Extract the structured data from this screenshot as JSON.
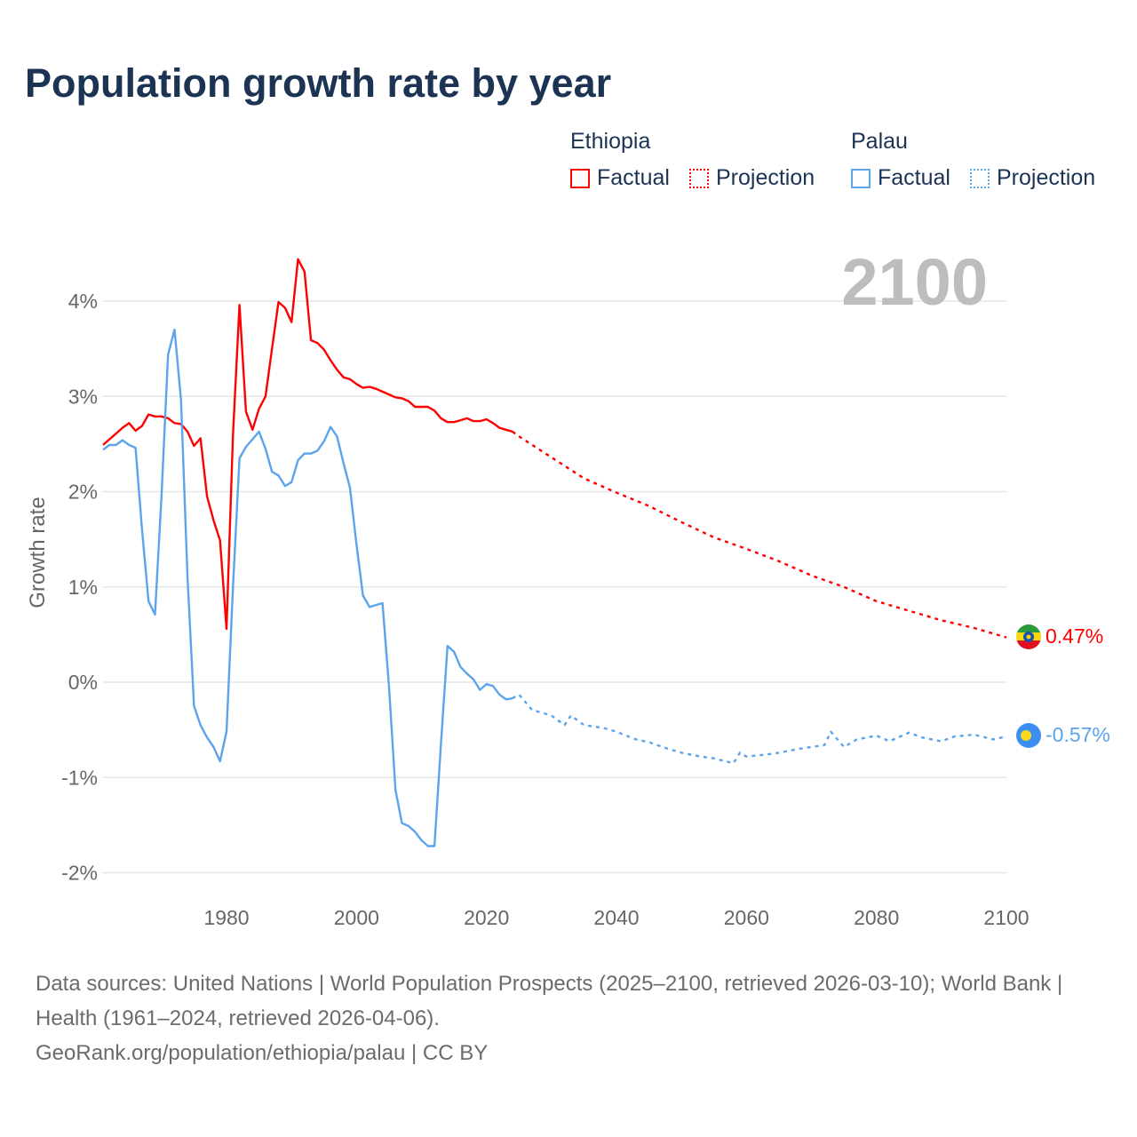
{
  "title": "Population growth rate by year",
  "legend": {
    "groups": [
      {
        "name": "Ethiopia",
        "factual": "Factual",
        "projection": "Projection",
        "color": "#ff0000"
      },
      {
        "name": "Palau",
        "factual": "Factual",
        "projection": "Projection",
        "color": "#5ba4ec"
      }
    ]
  },
  "year_label": "2100",
  "end_labels": {
    "ethiopia": "0.47%",
    "palau": "-0.57%"
  },
  "footer": {
    "line1": "Data sources: United Nations | World Population Prospects (2025–2100, retrieved 2026-03-10); World Bank | Health (1961–2024, retrieved 2026-04-06).",
    "line2": "GeoRank.org/population/ethiopia/palau | CC BY"
  },
  "chart_data": {
    "type": "line",
    "title": "Population growth rate by year",
    "xlabel": "",
    "ylabel": "Growth rate",
    "xlim": [
      1961,
      2100
    ],
    "ylim": [
      -2.3,
      4.6
    ],
    "x_ticks": [
      1980,
      2000,
      2020,
      2040,
      2060,
      2080,
      2100
    ],
    "x_tick_labels": [
      "1980",
      "2000",
      "2020",
      "2040",
      "2060",
      "2080",
      "2100"
    ],
    "y_ticks": [
      -2,
      -1,
      0,
      1,
      2,
      3,
      4
    ],
    "y_tick_labels": [
      "-2%",
      "-1%",
      "0%",
      "1%",
      "2%",
      "3%",
      "4%"
    ],
    "grid": true,
    "legend_position": "top-right",
    "series": [
      {
        "name": "Ethiopia Factual",
        "color": "#ff0000",
        "style": "solid",
        "x_start": 1961,
        "values": [
          2.49,
          2.55,
          2.61,
          2.67,
          2.72,
          2.64,
          2.69,
          2.81,
          2.79,
          2.79,
          2.77,
          2.72,
          2.71,
          2.63,
          2.48,
          2.56,
          1.95,
          1.7,
          1.49,
          0.56,
          2.6,
          3.96,
          2.84,
          2.65,
          2.87,
          3.0,
          3.5,
          3.99,
          3.93,
          3.78,
          4.44,
          4.31,
          3.59,
          3.56,
          3.49,
          3.38,
          3.28,
          3.2,
          3.18,
          3.13,
          3.09,
          3.1,
          3.08,
          3.05,
          3.02,
          2.99,
          2.98,
          2.95,
          2.89,
          2.89,
          2.89,
          2.85,
          2.77,
          2.73,
          2.73,
          2.75,
          2.77,
          2.74,
          2.74,
          2.76,
          2.72,
          2.67,
          2.65,
          2.63
        ]
      },
      {
        "name": "Ethiopia Projection",
        "color": "#ff0000",
        "style": "dotted",
        "x": [
          2024,
          2025,
          2030,
          2035,
          2040,
          2045,
          2050,
          2055,
          2060,
          2065,
          2070,
          2075,
          2080,
          2085,
          2090,
          2095,
          2100
        ],
        "values": [
          2.63,
          2.58,
          2.36,
          2.14,
          1.99,
          1.85,
          1.68,
          1.52,
          1.4,
          1.27,
          1.12,
          1.0,
          0.85,
          0.75,
          0.65,
          0.57,
          0.47
        ]
      },
      {
        "name": "Palau Factual",
        "color": "#5ba4ec",
        "style": "solid",
        "x_start": 1961,
        "values": [
          2.44,
          2.49,
          2.49,
          2.54,
          2.49,
          2.46,
          1.6,
          0.85,
          0.71,
          1.95,
          3.44,
          3.7,
          2.96,
          1.1,
          -0.25,
          -0.45,
          -0.58,
          -0.68,
          -0.83,
          -0.52,
          1.0,
          2.35,
          2.47,
          2.55,
          2.63,
          2.45,
          2.21,
          2.17,
          2.06,
          2.1,
          2.33,
          2.4,
          2.4,
          2.43,
          2.53,
          2.68,
          2.58,
          2.3,
          2.04,
          1.45,
          0.91,
          0.79,
          0.81,
          0.83,
          -0.04,
          -1.13,
          -1.48,
          -1.51,
          -1.57,
          -1.66,
          -1.72,
          -1.72,
          -0.65,
          0.38,
          0.32,
          0.16,
          0.09,
          0.03,
          -0.08,
          -0.02,
          -0.04,
          -0.13,
          -0.18,
          -0.17
        ]
      },
      {
        "name": "Palau Projection",
        "color": "#5ba4ec",
        "style": "dotted",
        "x": [
          2024,
          2025,
          2027,
          2030,
          2032,
          2033,
          2035,
          2038,
          2040,
          2043,
          2045,
          2048,
          2050,
          2053,
          2055,
          2058,
          2059,
          2060,
          2063,
          2065,
          2068,
          2070,
          2072,
          2073,
          2075,
          2077,
          2080,
          2082,
          2085,
          2087,
          2090,
          2092,
          2095,
          2098,
          2100
        ],
        "values": [
          -0.17,
          -0.13,
          -0.29,
          -0.35,
          -0.45,
          -0.35,
          -0.45,
          -0.48,
          -0.52,
          -0.6,
          -0.63,
          -0.7,
          -0.74,
          -0.78,
          -0.8,
          -0.85,
          -0.74,
          -0.78,
          -0.76,
          -0.74,
          -0.7,
          -0.68,
          -0.66,
          -0.52,
          -0.68,
          -0.6,
          -0.56,
          -0.62,
          -0.53,
          -0.58,
          -0.62,
          -0.57,
          -0.55,
          -0.6,
          -0.57
        ]
      }
    ]
  }
}
